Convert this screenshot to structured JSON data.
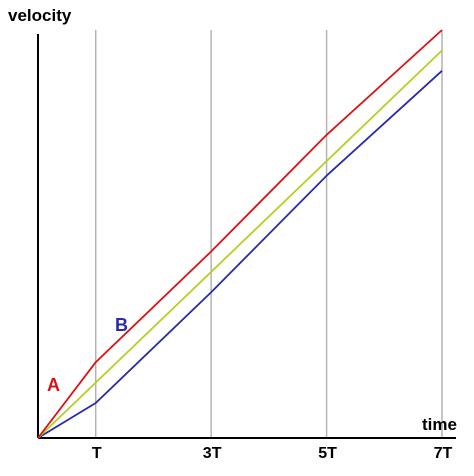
{
  "chart_data": {
    "type": "line",
    "title": "",
    "xlabel": "time",
    "ylabel": "velocity",
    "xlim": [
      0,
      7
    ],
    "ylim": [
      0,
      7
    ],
    "x_ticks": [
      {
        "value": 1,
        "label": "T"
      },
      {
        "value": 3,
        "label": "3T"
      },
      {
        "value": 5,
        "label": "5T"
      },
      {
        "value": 7,
        "label": "7T"
      }
    ],
    "grid": "vertical",
    "series": [
      {
        "name": "A",
        "color": "#dd1111",
        "points": [
          [
            0,
            0
          ],
          [
            1,
            1.3
          ],
          [
            3,
            3.2
          ],
          [
            5,
            5.2
          ],
          [
            7,
            7.0
          ]
        ]
      },
      {
        "name": "B",
        "color": "#2a2aa8",
        "points": [
          [
            0,
            0
          ],
          [
            1,
            0.6
          ],
          [
            3,
            2.5
          ],
          [
            5,
            4.5
          ],
          [
            7,
            6.3
          ]
        ]
      },
      {
        "name": "",
        "color": "#b5d022",
        "points": [
          [
            0,
            0
          ],
          [
            7,
            6.65
          ]
        ]
      }
    ]
  }
}
